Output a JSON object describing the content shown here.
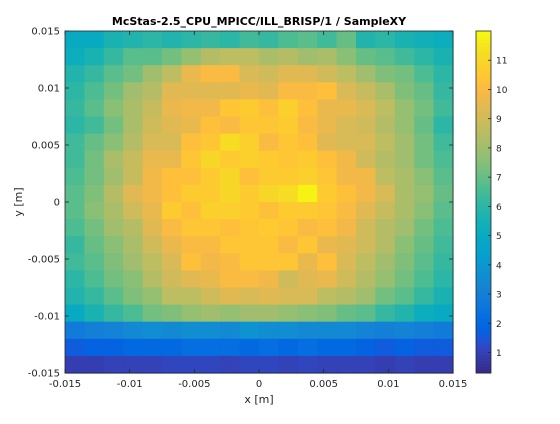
{
  "chart_data": {
    "type": "heatmap",
    "title": "McStas-2.5_CPU_MPICC/ILL_BRISP/1 / SampleXY",
    "xlabel": "x [m]",
    "ylabel": "y [m]",
    "xlim": [
      -0.015,
      0.015
    ],
    "ylim": [
      -0.015,
      0.015
    ],
    "xticks": [
      "-0.015",
      "-0.01",
      "-0.005",
      "0",
      "0.005",
      "0.01",
      "0.015"
    ],
    "yticks": [
      "-0.015",
      "-0.01",
      "-0.005",
      "0",
      "0.005",
      "0.01",
      "0.015"
    ],
    "colorbar": {
      "colormap": "parula",
      "range": [
        0.3,
        12.0
      ],
      "ticks": [
        "1",
        "2",
        "3",
        "4",
        "5",
        "6",
        "7",
        "8",
        "9",
        "10",
        "11"
      ]
    },
    "grid": false,
    "nx": 20,
    "ny": 20,
    "z_rows_top_to_bottom": [
      [
        5.0,
        5.0,
        5.6,
        5.8,
        6.0,
        5.8,
        6.0,
        6.2,
        6.0,
        6.4,
        6.2,
        6.6,
        6.8,
        6.4,
        7.0,
        5.8,
        6.0,
        5.6,
        5.4,
        5.2
      ],
      [
        5.2,
        5.6,
        6.2,
        6.8,
        6.8,
        7.2,
        7.8,
        8.4,
        8.6,
        8.6,
        8.2,
        8.4,
        8.0,
        8.2,
        7.6,
        7.0,
        6.8,
        6.4,
        6.0,
        5.6
      ],
      [
        5.8,
        6.2,
        6.8,
        7.2,
        8.0,
        8.6,
        9.6,
        10.0,
        10.0,
        9.2,
        9.0,
        9.4,
        9.4,
        9.0,
        8.6,
        8.0,
        7.4,
        7.2,
        6.6,
        6.0
      ],
      [
        6.0,
        6.6,
        7.2,
        8.0,
        8.4,
        9.4,
        9.4,
        9.4,
        9.4,
        9.6,
        9.4,
        10.0,
        10.0,
        10.2,
        9.2,
        8.8,
        8.2,
        7.4,
        7.0,
        6.2
      ],
      [
        6.2,
        6.8,
        7.6,
        8.2,
        8.8,
        9.6,
        9.8,
        9.8,
        10.4,
        10.6,
        10.2,
        10.8,
        10.2,
        9.6,
        9.6,
        9.2,
        8.6,
        7.8,
        7.2,
        6.4
      ],
      [
        6.0,
        6.4,
        7.2,
        8.2,
        9.0,
        9.4,
        9.6,
        10.2,
        10.0,
        10.4,
        10.4,
        10.6,
        10.0,
        9.6,
        9.2,
        9.0,
        8.4,
        7.8,
        7.0,
        6.0
      ],
      [
        6.4,
        7.0,
        7.6,
        8.4,
        9.2,
        9.2,
        10.2,
        10.4,
        11.2,
        10.8,
        10.0,
        10.4,
        10.2,
        9.4,
        9.2,
        9.2,
        8.6,
        8.0,
        7.2,
        6.4
      ],
      [
        6.4,
        7.2,
        8.2,
        8.8,
        9.6,
        9.6,
        10.4,
        11.0,
        10.6,
        10.8,
        10.6,
        10.4,
        10.6,
        10.2,
        9.8,
        9.0,
        8.4,
        8.0,
        7.2,
        6.6
      ],
      [
        6.6,
        7.2,
        8.0,
        8.8,
        9.8,
        10.2,
        10.2,
        10.6,
        11.0,
        10.2,
        10.6,
        10.6,
        10.8,
        10.4,
        9.8,
        9.8,
        8.6,
        8.2,
        7.6,
        6.8
      ],
      [
        6.8,
        7.4,
        8.4,
        9.4,
        9.8,
        10.2,
        10.6,
        10.6,
        11.0,
        10.6,
        11.0,
        11.2,
        11.8,
        10.6,
        10.2,
        9.8,
        9.2,
        8.2,
        7.8,
        7.0
      ],
      [
        6.8,
        7.6,
        8.2,
        9.0,
        9.6,
        10.6,
        10.2,
        10.8,
        10.8,
        10.6,
        10.2,
        10.6,
        10.6,
        10.4,
        10.0,
        9.4,
        8.8,
        8.2,
        7.6,
        6.8
      ],
      [
        6.6,
        7.2,
        8.0,
        8.4,
        9.4,
        10.0,
        10.4,
        10.4,
        10.2,
        10.4,
        10.6,
        10.4,
        10.0,
        10.2,
        9.8,
        9.0,
        8.4,
        8.0,
        7.2,
        6.6
      ],
      [
        6.2,
        7.0,
        7.6,
        8.2,
        9.0,
        9.6,
        10.0,
        10.0,
        10.4,
        10.4,
        10.4,
        10.0,
        10.4,
        9.6,
        9.4,
        9.0,
        8.4,
        7.6,
        7.0,
        6.4
      ],
      [
        6.4,
        6.8,
        7.4,
        8.0,
        8.6,
        9.2,
        10.2,
        9.8,
        10.0,
        10.4,
        10.4,
        10.4,
        9.6,
        10.2,
        9.2,
        8.6,
        8.0,
        7.4,
        6.8,
        6.2
      ],
      [
        6.0,
        6.6,
        7.2,
        7.6,
        8.4,
        9.0,
        9.4,
        9.6,
        10.0,
        10.0,
        9.8,
        9.0,
        9.4,
        9.6,
        9.0,
        8.4,
        7.8,
        7.2,
        6.6,
        6.0
      ],
      [
        5.8,
        6.2,
        6.8,
        7.4,
        7.8,
        8.6,
        8.6,
        9.0,
        9.4,
        9.2,
        9.4,
        9.2,
        9.2,
        8.6,
        8.4,
        8.0,
        7.2,
        6.8,
        6.2,
        5.6
      ],
      [
        5.0,
        5.6,
        6.2,
        6.6,
        7.2,
        7.4,
        7.8,
        8.0,
        7.8,
        8.0,
        8.0,
        7.8,
        7.6,
        7.4,
        7.0,
        6.8,
        6.2,
        5.8,
        5.2,
        5.0
      ],
      [
        2.8,
        3.0,
        3.2,
        3.4,
        3.6,
        3.4,
        3.6,
        3.6,
        3.4,
        3.8,
        3.6,
        3.6,
        3.4,
        3.4,
        3.4,
        3.2,
        3.0,
        3.2,
        3.0,
        2.8
      ],
      [
        1.6,
        1.8,
        1.8,
        2.0,
        2.0,
        2.0,
        2.2,
        2.2,
        2.2,
        2.0,
        2.2,
        2.0,
        2.2,
        2.0,
        2.0,
        1.8,
        1.6,
        1.8,
        1.6,
        1.6
      ],
      [
        0.9,
        0.9,
        1.0,
        1.0,
        1.0,
        1.1,
        1.1,
        1.1,
        1.0,
        1.1,
        1.1,
        1.0,
        1.1,
        1.0,
        1.0,
        1.0,
        0.9,
        1.0,
        0.9,
        0.9
      ]
    ]
  }
}
